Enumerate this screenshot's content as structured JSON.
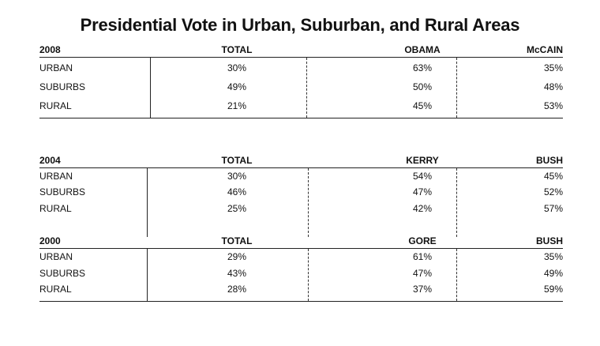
{
  "title": "Presidential Vote in Urban, Suburban, and Rural Areas",
  "tables": [
    {
      "year": "2008",
      "col_total": "TOTAL",
      "col_a": "OBAMA",
      "col_b": "McCAIN",
      "rows": [
        {
          "label": "URBAN",
          "total": "30%",
          "a": "63%",
          "b": "35%"
        },
        {
          "label": "SUBURBS",
          "total": "49%",
          "a": "50%",
          "b": "48%"
        },
        {
          "label": "RURAL",
          "total": "21%",
          "a": "45%",
          "b": "53%"
        }
      ]
    },
    {
      "year": "2004",
      "col_total": "TOTAL",
      "col_a": "KERRY",
      "col_b": "BUSH",
      "rows": [
        {
          "label": "URBAN",
          "total": "30%",
          "a": "54%",
          "b": "45%"
        },
        {
          "label": "SUBURBS",
          "total": "46%",
          "a": "47%",
          "b": "52%"
        },
        {
          "label": "RURAL",
          "total": "25%",
          "a": "42%",
          "b": "57%"
        }
      ]
    },
    {
      "year": "2000",
      "col_total": "TOTAL",
      "col_a": "GORE",
      "col_b": "BUSH",
      "rows": [
        {
          "label": "URBAN",
          "total": "29%",
          "a": "61%",
          "b": "35%"
        },
        {
          "label": "SUBURBS",
          "total": "43%",
          "a": "47%",
          "b": "49%"
        },
        {
          "label": "RURAL",
          "total": "28%",
          "a": "37%",
          "b": "59%"
        }
      ]
    }
  ]
}
